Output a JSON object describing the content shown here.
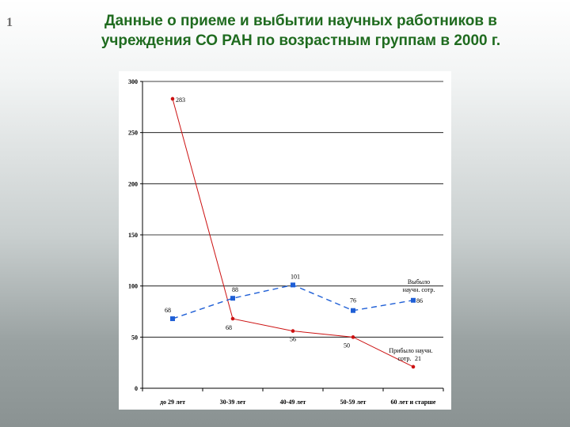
{
  "slide": {
    "number": "1"
  },
  "title": {
    "line1": "Данные о приеме и выбытии научных работников в",
    "line2": "учреждения СО РАН по возрастным группам в 2000 г."
  },
  "chart_data": {
    "type": "line",
    "categories": [
      "до 29 лет",
      "30-39 лет",
      "40-49 лет",
      "50-59 лет",
      "60 лет и старше"
    ],
    "ylim": [
      0,
      300
    ],
    "yticks": [
      0,
      50,
      100,
      150,
      200,
      250,
      300
    ],
    "grid": true,
    "series": [
      {
        "name": "Прибыло научн. сотр.",
        "values": [
          283,
          68,
          56,
          50,
          21
        ],
        "color": "#cc1111",
        "style": "solid",
        "marker": "circle",
        "label_lines": [
          "Прибыло научн.",
          "сотр."
        ]
      },
      {
        "name": "Выбыло научн. сотр.",
        "values": [
          68,
          88,
          101,
          76,
          86
        ],
        "color": "#1f5fd6",
        "style": "dashed",
        "marker": "square",
        "label_lines": [
          "Выбыло",
          "научн. сотр."
        ]
      }
    ]
  }
}
